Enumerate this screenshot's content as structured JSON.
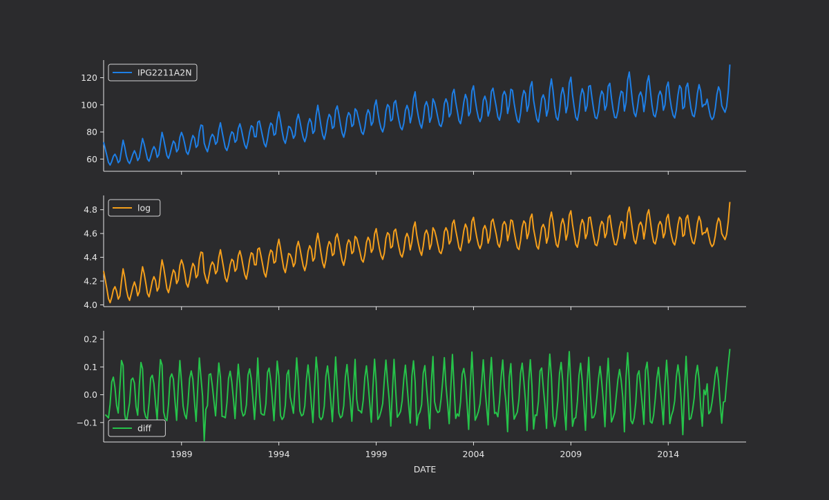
{
  "chart_data": {
    "type": "line",
    "xlabel": "DATE",
    "x_range": [
      "1985-01",
      "2018-01"
    ],
    "x_ticks": [
      "1989",
      "1994",
      "1999",
      "2004",
      "2009",
      "2014"
    ],
    "x_tick_years": [
      1989,
      1994,
      1999,
      2004,
      2009,
      2014
    ],
    "grid": false,
    "panels": [
      {
        "legend": "IPG2211A2N",
        "legend_position": "top-left",
        "color": "#1e7fe6",
        "ylim": [
          51,
          133
        ],
        "y_ticks": [
          "60",
          "80",
          "100",
          "120"
        ],
        "y_tick_values": [
          60,
          80,
          100,
          120
        ],
        "series": {
          "start": "1985-01",
          "step_months": 1,
          "values": [
            72.5,
            67.5,
            62.5,
            57.5,
            55.6,
            58.2,
            62.0,
            63.6,
            61.2,
            57.3,
            58.8,
            66.5,
            73.9,
            68.9,
            62.3,
            58.4,
            56.7,
            59.8,
            63.5,
            66.2,
            63.4,
            58.9,
            61.0,
            68.5,
            75.2,
            71.0,
            65.5,
            60.1,
            58.4,
            62.0,
            66.5,
            69.2,
            67.0,
            61.3,
            63.1,
            71.6,
            79.7,
            74.9,
            68.7,
            62.6,
            60.5,
            64.3,
            69.3,
            73.3,
            71.6,
            65.3,
            67.3,
            76.1,
            79.7,
            76.5,
            71.2,
            65.3,
            63.4,
            67.2,
            73.2,
            77.4,
            75.5,
            68.6,
            70.1,
            80.0,
            85.1,
            84.6,
            71.7,
            68.0,
            65.4,
            70.3,
            75.8,
            78.3,
            76.5,
            70.9,
            72.7,
            81.5,
            86.8,
            80.3,
            74.2,
            68.3,
            66.3,
            70.3,
            76.5,
            80.1,
            78.9,
            72.4,
            74.0,
            82.6,
            86.0,
            81.4,
            75.4,
            70.3,
            67.8,
            72.8,
            79.9,
            84.6,
            83.6,
            76.5,
            76.4,
            87.2,
            88.1,
            82.4,
            76.7,
            71.3,
            69.0,
            74.8,
            82.3,
            86.6,
            85.2,
            77.6,
            78.6,
            88.7,
            94.8,
            88.0,
            80.5,
            74.3,
            71.6,
            77.0,
            84.1,
            83.4,
            80.5,
            75.3,
            77.6,
            88.6,
            93.1,
            87.8,
            81.4,
            75.8,
            72.8,
            76.9,
            85.6,
            89.8,
            87.2,
            78.9,
            80.8,
            92.5,
            99.7,
            92.1,
            84.2,
            77.7,
            74.6,
            79.7,
            88.4,
            93.0,
            91.0,
            82.6,
            83.9,
            96.1,
            99.2,
            92.9,
            85.5,
            79.2,
            76.1,
            81.1,
            90.4,
            94.3,
            92.4,
            84.0,
            85.5,
            97.1,
            95.5,
            90.3,
            85.2,
            79.8,
            78.2,
            83.2,
            92.3,
            96.4,
            93.7,
            84.9,
            87.3,
            99.2,
            103.6,
            94.8,
            87.6,
            82.6,
            80.0,
            84.3,
            95.5,
            100.2,
            98.6,
            88.1,
            89.3,
            101.4,
            103.2,
            95.2,
            88.6,
            83.4,
            81.6,
            86.3,
            96.0,
            99.6,
            96.0,
            86.7,
            92.6,
            104.6,
            109.6,
            98.2,
            91.3,
            85.8,
            82.8,
            89.5,
            99.4,
            102.4,
            98.4,
            87.1,
            91.0,
            104.4,
            101.8,
            96.6,
            90.6,
            85.3,
            84.0,
            88.3,
            100.9,
            104.4,
            101.1,
            91.1,
            93.6,
            108.2,
            111.4,
            102.3,
            95.5,
            88.4,
            86.1,
            92.7,
            101.9,
            107.7,
            104.1,
            91.9,
            94.6,
            110.3,
            114.0,
            104.0,
            96.2,
            90.5,
            87.6,
            91.1,
            103.3,
            106.4,
            102.2,
            91.7,
            96.1,
            109.9,
            112.3,
            105.0,
            98.5,
            91.0,
            88.7,
            94.5,
            107.1,
            110.0,
            106.9,
            93.6,
            99.7,
            111.5,
            110.6,
            101.3,
            94.0,
            88.3,
            86.9,
            93.9,
            105.2,
            110.6,
            108.3,
            95.2,
            99.9,
            113.3,
            117.1,
            103.5,
            96.2,
            89.3,
            87.3,
            95.1,
            104.7,
            107.4,
            103.5,
            91.7,
            96.6,
            111.8,
            119.1,
            110.3,
            98.4,
            90.6,
            88.7,
            95.8,
            107.6,
            112.7,
            106.8,
            94.1,
            99.4,
            116.1,
            120.4,
            107.5,
            98.6,
            90.8,
            88.6,
            95.0,
            106.4,
            111.9,
            108.3,
            95.3,
            99.3,
            113.6,
            114.2,
            105.1,
            96.9,
            90.7,
            89.8,
            95.0,
            105.2,
            110.2,
            107.8,
            96.1,
            99.7,
            113.7,
            115.9,
            105.1,
            96.7,
            90.7,
            90.4,
            95.5,
            104.6,
            110.1,
            109.0,
            95.4,
            101.8,
            118.4,
            124.2,
            113.2,
            102.0,
            93.9,
            91.3,
            98.0,
            106.8,
            109.5,
            105.7,
            95.0,
            103.8,
            116.7,
            121.5,
            110.3,
            99.6,
            92.5,
            91.1,
            96.7,
            106.7,
            110.1,
            106.9,
            96.0,
            99.9,
            113.1,
            116.8,
            105.3,
            97.7,
            92.3,
            90.3,
            96.3,
            107.2,
            114.2,
            112.1,
            97.1,
            98.5,
            113.1,
            116.0,
            106.1,
            97.5,
            92.3,
            91.2,
            97.7,
            108.6,
            114.9,
            110.3,
            98.5,
            100.2,
            100.2,
            104.2,
            97.3,
            91.6,
            89.1,
            90.8,
            97.5,
            107.7,
            113.3,
            110.1,
            99.4,
            96.8,
            94.5,
            98.8,
            110.0,
            129.7
          ]
        }
      },
      {
        "legend": "log",
        "legend_position": "top-left",
        "color": "#f59f1b",
        "ylim": [
          3.985,
          4.92
        ],
        "y_ticks": [
          "4.0",
          "4.2",
          "4.4",
          "4.6",
          "4.8"
        ],
        "y_tick_values": [
          4.0,
          4.2,
          4.4,
          4.6,
          4.8
        ],
        "series": {
          "derived": "natural log of IPG2211A2N"
        }
      },
      {
        "legend": "diff",
        "legend_position": "bottom-left",
        "color": "#26c34a",
        "ylim": [
          -0.17,
          0.23
        ],
        "y_ticks": [
          "−0.1",
          "0.0",
          "0.1",
          "0.2"
        ],
        "y_tick_values": [
          -0.1,
          0.0,
          0.1,
          0.2
        ],
        "series": {
          "derived": "first difference of log"
        }
      }
    ]
  }
}
